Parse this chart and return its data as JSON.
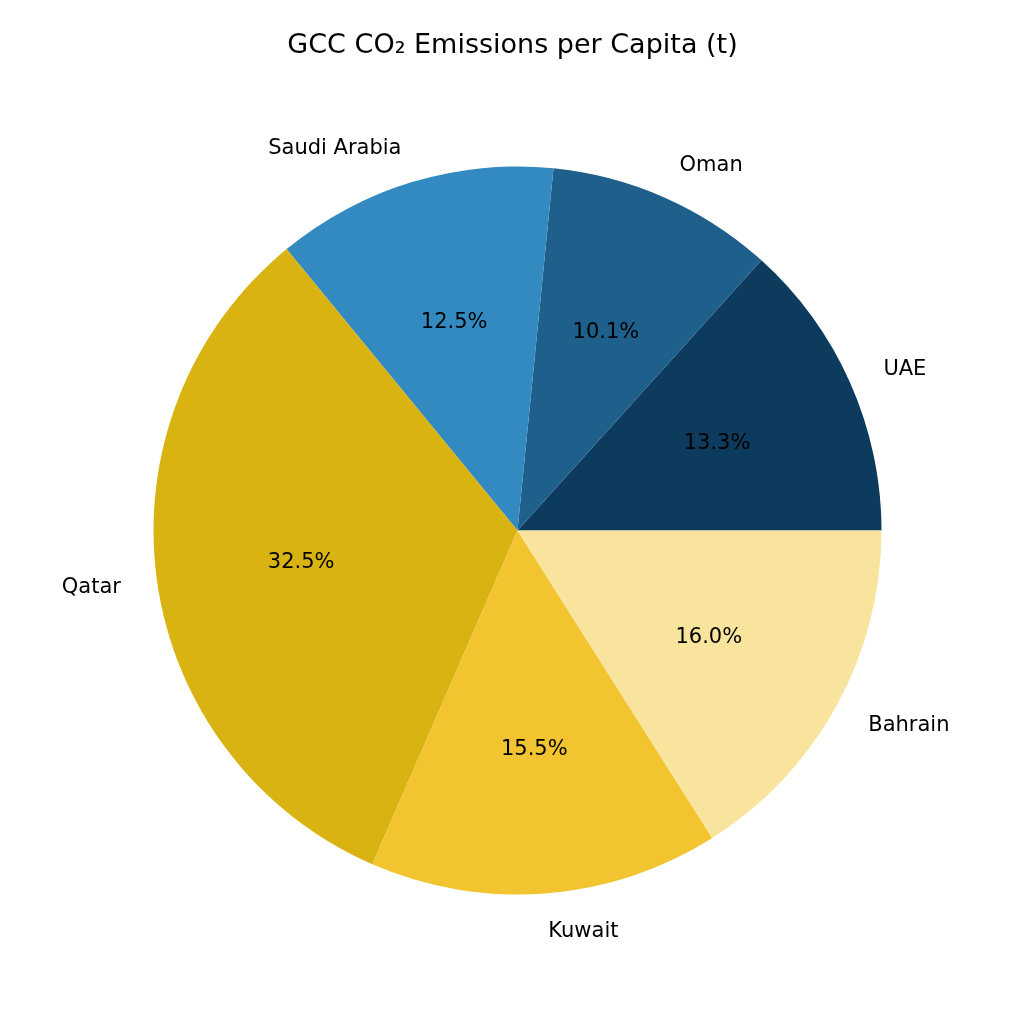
{
  "chart_data": {
    "type": "pie",
    "title": "GCC CO₂ Emissions per Capita (t)",
    "categories": [
      "UAE",
      "Oman",
      "Saudi Arabia",
      "Qatar",
      "Kuwait",
      "Bahrain"
    ],
    "values": [
      13.3,
      10.1,
      12.5,
      32.5,
      15.5,
      16.0
    ],
    "value_labels": [
      "13.3%",
      "10.1%",
      "12.5%",
      "32.5%",
      "15.5%",
      "16.0%"
    ],
    "colors": [
      "#0d3b5e",
      "#1f5f8b",
      "#338ac1",
      "#d9b311",
      "#f2c430",
      "#f8e49c"
    ],
    "legend": false
  }
}
